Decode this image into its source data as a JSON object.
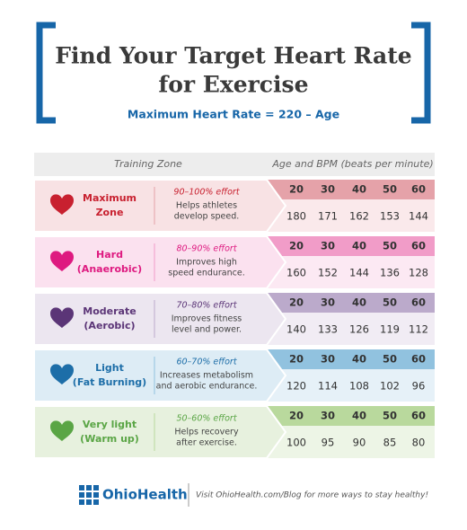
{
  "header": {
    "title_lines": [
      "Find Your Target Heart Rate",
      "for Exercise"
    ],
    "subtitle": "Maximum Heart Rate = 220 – Age"
  },
  "table": {
    "columns": [
      "Training Zone",
      "Age and BPM (beats per minute)"
    ],
    "zones": [
      {
        "name_lines": [
          "Maximum",
          "Zone"
        ],
        "effort": "90–100% effort",
        "description_lines": [
          "Helps athletes",
          "develop speed."
        ],
        "ages": [
          20,
          30,
          40,
          50,
          60
        ],
        "bpm": [
          180,
          171,
          162,
          153,
          144
        ],
        "color": "#c8202f",
        "background": "#f8e2e4",
        "band": "#e5a2a9"
      },
      {
        "name_lines": [
          "Hard",
          "(Anaerobic)"
        ],
        "effort": "80–90% effort",
        "description_lines": [
          "Improves high",
          "speed endurance."
        ],
        "ages": [
          20,
          30,
          40,
          50,
          60
        ],
        "bpm": [
          160,
          152,
          144,
          136,
          128
        ],
        "color": "#de1a80",
        "background": "#fbe1ef",
        "band": "#f19cc8"
      },
      {
        "name_lines": [
          "Moderate",
          "(Aerobic)"
        ],
        "effort": "70–80% effort",
        "description_lines": [
          "Improves fitness",
          "level and power."
        ],
        "ages": [
          20,
          30,
          40,
          50,
          60
        ],
        "bpm": [
          140,
          133,
          126,
          119,
          112
        ],
        "color": "#5b3577",
        "background": "#ece6f0",
        "band": "#bbaacb"
      },
      {
        "name_lines": [
          "Light",
          "(Fat Burning)"
        ],
        "effort": "60–70% effort",
        "description_lines": [
          "Increases metabolism",
          "and aerobic endurance."
        ],
        "ages": [
          20,
          30,
          40,
          50,
          60
        ],
        "bpm": [
          120,
          114,
          108,
          102,
          96
        ],
        "color": "#1d6ea8",
        "background": "#ddecf5",
        "band": "#91c2df"
      },
      {
        "name_lines": [
          "Very light",
          "(Warm up)"
        ],
        "effort": "50–60% effort",
        "description_lines": [
          "Helps recovery",
          "after exercise."
        ],
        "ages": [
          20,
          30,
          40,
          50,
          60
        ],
        "bpm": [
          100,
          95,
          90,
          85,
          80
        ],
        "color": "#5aa545",
        "background": "#e7f1de",
        "band": "#b9d99d"
      }
    ]
  },
  "footer": {
    "brand": "OhioHealth",
    "message": "Visit OhioHealth.com/Blog for more ways to stay healthy!"
  }
}
